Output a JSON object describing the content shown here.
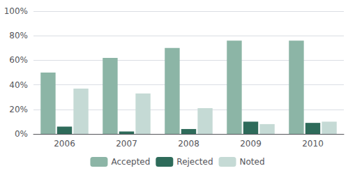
{
  "chart_data": {
    "type": "bar",
    "categories": [
      "2006",
      "2007",
      "2008",
      "2009",
      "2010"
    ],
    "series": [
      {
        "name": "Accepted",
        "color": "#8CB5A6",
        "values": [
          50,
          62,
          70,
          76,
          76
        ]
      },
      {
        "name": "Rejected",
        "color": "#2E6B5A",
        "values": [
          6,
          2,
          4,
          10,
          9
        ]
      },
      {
        "name": "Noted",
        "color": "#C5DAD5",
        "values": [
          37,
          33,
          21,
          8,
          10
        ]
      }
    ],
    "ylim": [
      0,
      100
    ],
    "yticks": [
      {
        "value": 0,
        "label": "0%"
      },
      {
        "value": 20,
        "label": "20%"
      },
      {
        "value": 40,
        "label": "40%"
      },
      {
        "value": 60,
        "label": "60%"
      },
      {
        "value": 80,
        "label": "80%"
      },
      {
        "value": 100,
        "label": "100%"
      }
    ],
    "grid": true,
    "legend": "bottom"
  }
}
